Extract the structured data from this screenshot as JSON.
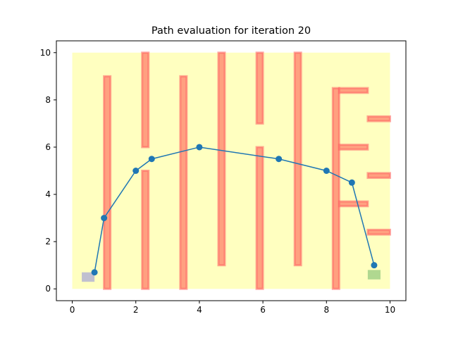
{
  "chart_data": {
    "type": "line",
    "title": "Path evaluation for iteration 20",
    "xlabel": "",
    "ylabel": "",
    "xlim": [
      -0.5,
      10.5
    ],
    "ylim": [
      -0.5,
      10.5
    ],
    "xticks": [
      0,
      2,
      4,
      6,
      8,
      10
    ],
    "yticks": [
      0,
      2,
      4,
      6,
      8,
      10
    ],
    "grid": false,
    "workspace": {
      "x0": 0,
      "x1": 10,
      "y0": 0,
      "y1": 10,
      "color": "#ffffc0"
    },
    "obstacles": [
      {
        "x0": 1.0,
        "x1": 1.2,
        "y0": 0.0,
        "y1": 9.0
      },
      {
        "x0": 2.2,
        "x1": 2.4,
        "y0": 0.0,
        "y1": 5.0
      },
      {
        "x0": 2.2,
        "x1": 2.4,
        "y0": 6.0,
        "y1": 10.0
      },
      {
        "x0": 3.4,
        "x1": 3.6,
        "y0": 0.0,
        "y1": 9.0
      },
      {
        "x0": 4.6,
        "x1": 4.8,
        "y0": 1.0,
        "y1": 10.0
      },
      {
        "x0": 5.8,
        "x1": 6.0,
        "y0": 0.0,
        "y1": 6.0
      },
      {
        "x0": 5.8,
        "x1": 6.0,
        "y0": 7.0,
        "y1": 10.0
      },
      {
        "x0": 7.0,
        "x1": 7.2,
        "y0": 1.0,
        "y1": 10.0
      },
      {
        "x0": 8.2,
        "x1": 8.4,
        "y0": 0.0,
        "y1": 8.5
      },
      {
        "x0": 8.4,
        "x1": 9.3,
        "y0": 8.3,
        "y1": 8.5
      },
      {
        "x0": 8.4,
        "x1": 9.3,
        "y0": 5.9,
        "y1": 6.1
      },
      {
        "x0": 8.4,
        "x1": 9.3,
        "y0": 3.5,
        "y1": 3.7
      },
      {
        "x0": 9.3,
        "x1": 10.0,
        "y0": 7.1,
        "y1": 7.3
      },
      {
        "x0": 9.3,
        "x1": 10.0,
        "y0": 4.7,
        "y1": 4.9
      },
      {
        "x0": 9.3,
        "x1": 10.0,
        "y0": 2.3,
        "y1": 2.5
      }
    ],
    "obstacle_fill": "#ffa080",
    "obstacle_edge": "#ff6060",
    "start": {
      "x0": 0.3,
      "x1": 0.7,
      "y0": 0.3,
      "y1": 0.7,
      "color": "#c0c0d0"
    },
    "goal": {
      "x0": 9.3,
      "x1": 9.7,
      "y0": 0.4,
      "y1": 0.8,
      "color": "#b0d890"
    },
    "series": [
      {
        "x": [
          0.7,
          1.0,
          2.0,
          2.5,
          4.0,
          6.5,
          8.0,
          8.8,
          9.5
        ],
        "y": [
          0.7,
          3.0,
          5.0,
          5.5,
          6.0,
          5.5,
          5.0,
          4.5,
          1.0
        ],
        "color": "#1f77b4"
      }
    ]
  }
}
